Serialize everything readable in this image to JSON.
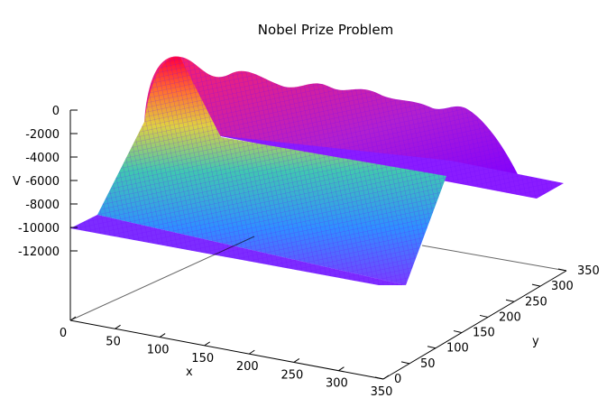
{
  "chart_data": {
    "type": "surface",
    "title": "Nobel Prize Problem",
    "xlabel": "x",
    "ylabel": "y",
    "zlabel": "V",
    "xlim": [
      0,
      350
    ],
    "ylim": [
      0,
      350
    ],
    "zlim": [
      -12000,
      0
    ],
    "x_ticks": [
      "0",
      "50",
      "100",
      "150",
      "200",
      "250",
      "300",
      "350"
    ],
    "y_ticks": [
      "0",
      "50",
      "100",
      "150",
      "200",
      "250",
      "300",
      "350"
    ],
    "z_ticks": [
      "0",
      "-2000",
      "-4000",
      "-6000",
      "-8000",
      "-10000",
      "-12000"
    ],
    "surface": {
      "base_level": -10000,
      "ridge_x": [
        60,
        240
      ],
      "ridge_peak_y": [
        0,
        50,
        100,
        150,
        200,
        250,
        300
      ],
      "ridge_peak_values": [
        0,
        -800,
        -600,
        -500,
        -500,
        -300,
        -1000
      ]
    },
    "colors": {
      "low": "#8a2be2",
      "mid": "#00c8c0",
      "high": "#ff0030",
      "peak": "#ff00a0",
      "grid": "#8000ff"
    }
  }
}
